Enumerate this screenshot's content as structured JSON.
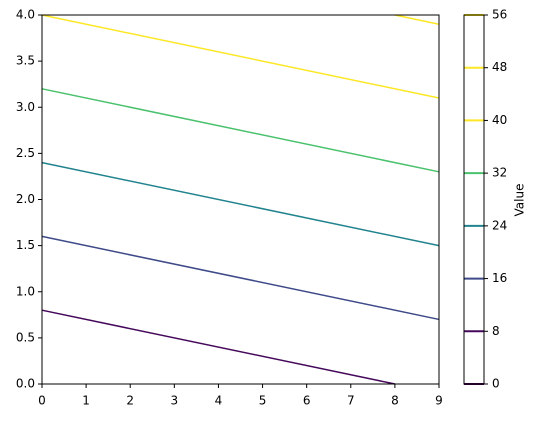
{
  "chart_data": {
    "type": "contour",
    "xlim": [
      0,
      9
    ],
    "ylim": [
      0,
      4
    ],
    "xticks": [
      0,
      1,
      2,
      3,
      4,
      5,
      6,
      7,
      8,
      9
    ],
    "yticks": [
      {
        "value": 0,
        "label": "0.0"
      },
      0.5,
      {
        "value": 1,
        "label": "1.0"
      },
      1.5,
      {
        "value": 2,
        "label": "2.0"
      },
      2.5,
      {
        "value": 3,
        "label": "3.0"
      },
      3.5,
      {
        "value": 4,
        "label": "4.0"
      }
    ],
    "lines": [
      {
        "color": "#45085b",
        "x": [
          0,
          8
        ],
        "y": [
          0.8,
          0
        ]
      },
      {
        "color": "#3e4a89",
        "x": [
          0,
          9
        ],
        "y": [
          1.6,
          0.7
        ]
      },
      {
        "color": "#21838e",
        "x": [
          0,
          9
        ],
        "y": [
          2.4,
          1.5
        ]
      },
      {
        "color": "#4ac16d",
        "x": [
          0,
          9
        ],
        "y": [
          3.2,
          2.3
        ]
      },
      {
        "color": "#fde725",
        "x": [
          0,
          9
        ],
        "y": [
          4.0,
          3.1
        ]
      },
      {
        "color": "#fde725",
        "x": [
          8,
          9
        ],
        "y": [
          4.0,
          3.9
        ]
      }
    ],
    "colorbar": {
      "label": "Value",
      "lim": [
        0,
        56
      ],
      "ticks": [
        0,
        8,
        16,
        24,
        32,
        40,
        48,
        56
      ],
      "colors": [
        "#440154",
        "#45085b",
        "#3e4a89",
        "#21838e",
        "#4ac16d",
        "#fde725",
        "#fde725",
        "#fde725"
      ]
    }
  }
}
